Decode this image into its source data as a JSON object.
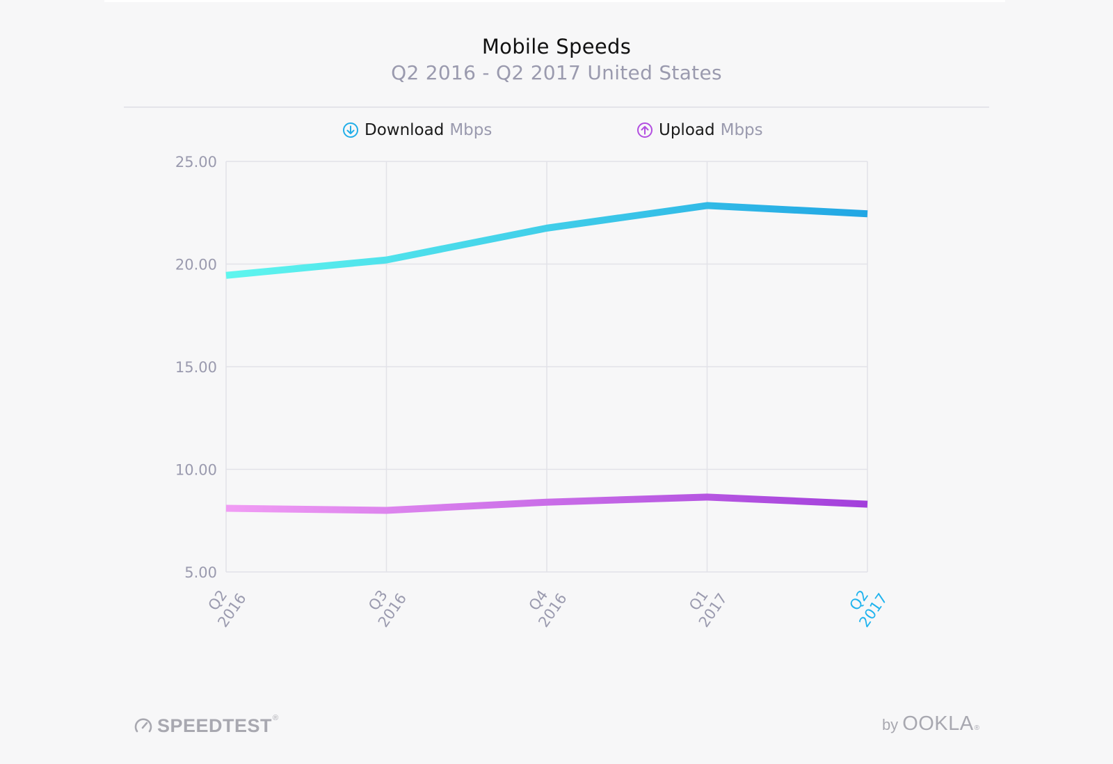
{
  "chart_data": {
    "type": "line",
    "title": "Mobile Speeds",
    "subtitle": "Q2 2016 - Q2 2017 United States",
    "categories": [
      {
        "quarter": "Q2",
        "year": "2016"
      },
      {
        "quarter": "Q3",
        "year": "2016"
      },
      {
        "quarter": "Q4",
        "year": "2016"
      },
      {
        "quarter": "Q1",
        "year": "2017"
      },
      {
        "quarter": "Q2",
        "year": "2017"
      }
    ],
    "highlighted_category_index": 4,
    "series": [
      {
        "name": "Download",
        "unit": "Mbps",
        "icon": "arrow-down-circle-icon",
        "values": [
          19.45,
          20.2,
          21.75,
          22.85,
          22.45
        ],
        "color_start": "#5ff6ee",
        "color_end": "#22a6e4"
      },
      {
        "name": "Upload",
        "unit": "Mbps",
        "icon": "arrow-up-circle-icon",
        "values": [
          8.1,
          8.0,
          8.4,
          8.65,
          8.3
        ],
        "color_start": "#f19cf4",
        "color_end": "#a23fdb"
      }
    ],
    "ylim": [
      5,
      25
    ],
    "yticks": [
      "25.00",
      "20.00",
      "15.00",
      "10.00",
      "5.00"
    ],
    "grid": true,
    "legend_position": "top-center",
    "xlabel": "",
    "ylabel": ""
  },
  "colors": {
    "background": "#f7f7f8",
    "grid": "#e2e2e8",
    "tick_label": "#9a9aae",
    "highlight_tick": "#1fb3ee",
    "download_icon": "#22aee8",
    "upload_icon": "#b24de0"
  },
  "branding": {
    "left": "SPEEDTEST",
    "left_mark": "®",
    "left_icon": "speedometer-icon",
    "right_prefix": "by",
    "right": "OOKLA",
    "right_mark": "®"
  }
}
